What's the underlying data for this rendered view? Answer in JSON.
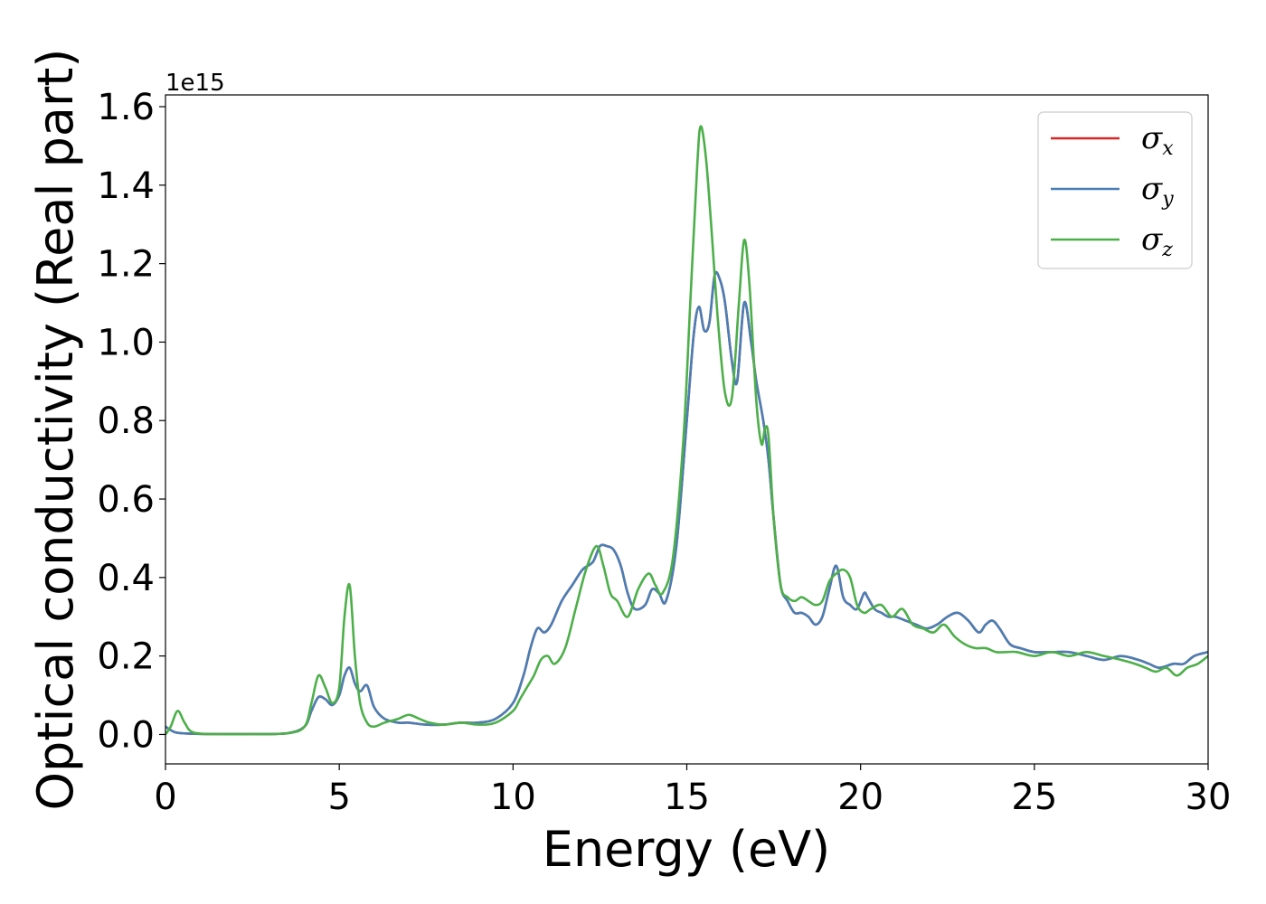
{
  "chart_data": {
    "type": "line",
    "title": "",
    "xlabel": "Energy (eV)",
    "ylabel": "Optical conductivity (Real part)",
    "y_offset_label": "1e15",
    "xlim": [
      0,
      30
    ],
    "ylim": [
      -0.075,
      1.63
    ],
    "xticks": [
      0,
      5,
      10,
      15,
      20,
      25,
      30
    ],
    "yticks": [
      0.0,
      0.2,
      0.4,
      0.6,
      0.8,
      1.0,
      1.2,
      1.4,
      1.6
    ],
    "xtick_labels": [
      "0",
      "5",
      "10",
      "15",
      "20",
      "25",
      "30"
    ],
    "ytick_labels": [
      "0.0",
      "0.2",
      "0.4",
      "0.6",
      "0.8",
      "1.0",
      "1.2",
      "1.4",
      "1.6"
    ],
    "grid": false,
    "legend_position": "top-right",
    "series": [
      {
        "name": "σx",
        "sub": "x",
        "color": "#d62728",
        "x": [
          0,
          0.3,
          0.8,
          1.5,
          2.5,
          3.5,
          4.0,
          4.2,
          4.4,
          4.6,
          4.8,
          5.0,
          5.15,
          5.3,
          5.45,
          5.6,
          5.8,
          6.0,
          6.3,
          6.7,
          7.0,
          7.5,
          8.0,
          8.5,
          9.0,
          9.5,
          10.0,
          10.3,
          10.5,
          10.7,
          10.9,
          11.1,
          11.4,
          11.7,
          12.0,
          12.3,
          12.5,
          12.7,
          12.9,
          13.1,
          13.3,
          13.5,
          13.8,
          14.0,
          14.2,
          14.4,
          14.7,
          15.0,
          15.2,
          15.35,
          15.5,
          15.65,
          15.8,
          15.95,
          16.1,
          16.3,
          16.45,
          16.65,
          16.85,
          17.0,
          17.2,
          17.35,
          17.5,
          17.7,
          17.9,
          18.1,
          18.3,
          18.5,
          18.7,
          18.9,
          19.1,
          19.3,
          19.5,
          19.7,
          19.9,
          20.1,
          20.2,
          20.4,
          20.6,
          20.8,
          21.0,
          21.3,
          21.6,
          21.9,
          22.2,
          22.5,
          22.8,
          23.1,
          23.4,
          23.6,
          23.8,
          24.0,
          24.3,
          24.6,
          25.0,
          25.5,
          26.0,
          26.5,
          27.0,
          27.5,
          28.0,
          28.3,
          28.6,
          29.0,
          29.3,
          29.6,
          30.0
        ],
        "values": [
          0.02,
          0.005,
          0.002,
          0.001,
          0.001,
          0.003,
          0.02,
          0.06,
          0.095,
          0.09,
          0.075,
          0.1,
          0.15,
          0.17,
          0.13,
          0.11,
          0.125,
          0.07,
          0.04,
          0.03,
          0.03,
          0.025,
          0.025,
          0.03,
          0.03,
          0.04,
          0.08,
          0.15,
          0.22,
          0.27,
          0.26,
          0.28,
          0.34,
          0.38,
          0.42,
          0.44,
          0.48,
          0.48,
          0.47,
          0.43,
          0.36,
          0.32,
          0.33,
          0.37,
          0.36,
          0.34,
          0.48,
          0.8,
          1.02,
          1.09,
          1.03,
          1.05,
          1.17,
          1.16,
          1.1,
          0.95,
          0.9,
          1.1,
          1.0,
          0.9,
          0.8,
          0.7,
          0.55,
          0.38,
          0.34,
          0.31,
          0.31,
          0.3,
          0.28,
          0.3,
          0.37,
          0.43,
          0.35,
          0.33,
          0.32,
          0.36,
          0.35,
          0.32,
          0.31,
          0.3,
          0.3,
          0.29,
          0.28,
          0.27,
          0.28,
          0.3,
          0.31,
          0.29,
          0.26,
          0.28,
          0.29,
          0.27,
          0.23,
          0.22,
          0.21,
          0.21,
          0.21,
          0.2,
          0.19,
          0.2,
          0.19,
          0.18,
          0.17,
          0.18,
          0.18,
          0.2,
          0.21
        ]
      },
      {
        "name": "σy",
        "sub": "y",
        "color": "#4a7fb5",
        "x": [
          0,
          0.3,
          0.8,
          1.5,
          2.5,
          3.5,
          4.0,
          4.2,
          4.4,
          4.6,
          4.8,
          5.0,
          5.15,
          5.3,
          5.45,
          5.6,
          5.8,
          6.0,
          6.3,
          6.7,
          7.0,
          7.5,
          8.0,
          8.5,
          9.0,
          9.5,
          10.0,
          10.3,
          10.5,
          10.7,
          10.9,
          11.1,
          11.4,
          11.7,
          12.0,
          12.3,
          12.5,
          12.7,
          12.9,
          13.1,
          13.3,
          13.5,
          13.8,
          14.0,
          14.2,
          14.4,
          14.7,
          15.0,
          15.2,
          15.35,
          15.5,
          15.65,
          15.8,
          15.95,
          16.1,
          16.3,
          16.45,
          16.65,
          16.85,
          17.0,
          17.2,
          17.35,
          17.5,
          17.7,
          17.9,
          18.1,
          18.3,
          18.5,
          18.7,
          18.9,
          19.1,
          19.3,
          19.5,
          19.7,
          19.9,
          20.1,
          20.2,
          20.4,
          20.6,
          20.8,
          21.0,
          21.3,
          21.6,
          21.9,
          22.2,
          22.5,
          22.8,
          23.1,
          23.4,
          23.6,
          23.8,
          24.0,
          24.3,
          24.6,
          25.0,
          25.5,
          26.0,
          26.5,
          27.0,
          27.5,
          28.0,
          28.3,
          28.6,
          29.0,
          29.3,
          29.6,
          30.0
        ],
        "values": [
          0.02,
          0.005,
          0.002,
          0.001,
          0.001,
          0.003,
          0.02,
          0.06,
          0.095,
          0.09,
          0.075,
          0.1,
          0.15,
          0.17,
          0.13,
          0.11,
          0.125,
          0.07,
          0.04,
          0.03,
          0.03,
          0.025,
          0.025,
          0.03,
          0.03,
          0.04,
          0.08,
          0.15,
          0.22,
          0.27,
          0.26,
          0.28,
          0.34,
          0.38,
          0.42,
          0.44,
          0.48,
          0.48,
          0.47,
          0.43,
          0.36,
          0.32,
          0.33,
          0.37,
          0.36,
          0.34,
          0.48,
          0.8,
          1.02,
          1.09,
          1.03,
          1.05,
          1.17,
          1.16,
          1.1,
          0.95,
          0.9,
          1.1,
          1.0,
          0.9,
          0.8,
          0.7,
          0.55,
          0.38,
          0.34,
          0.31,
          0.31,
          0.3,
          0.28,
          0.3,
          0.37,
          0.43,
          0.35,
          0.33,
          0.32,
          0.36,
          0.35,
          0.32,
          0.31,
          0.3,
          0.3,
          0.29,
          0.28,
          0.27,
          0.28,
          0.3,
          0.31,
          0.29,
          0.26,
          0.28,
          0.29,
          0.27,
          0.23,
          0.22,
          0.21,
          0.21,
          0.21,
          0.2,
          0.19,
          0.2,
          0.19,
          0.18,
          0.17,
          0.18,
          0.18,
          0.2,
          0.21
        ]
      },
      {
        "name": "σz",
        "sub": "z",
        "color": "#4daf4a",
        "x": [
          0,
          0.15,
          0.35,
          0.55,
          0.8,
          1.5,
          2.5,
          3.5,
          4.0,
          4.2,
          4.4,
          4.6,
          4.8,
          5.0,
          5.15,
          5.3,
          5.45,
          5.6,
          5.8,
          6.0,
          6.3,
          6.7,
          7.0,
          7.3,
          7.6,
          8.0,
          8.5,
          9.0,
          9.5,
          10.0,
          10.2,
          10.4,
          10.6,
          10.8,
          11.0,
          11.2,
          11.5,
          11.8,
          12.1,
          12.4,
          12.6,
          12.8,
          13.0,
          13.3,
          13.6,
          13.9,
          14.1,
          14.3,
          14.6,
          14.9,
          15.1,
          15.3,
          15.4,
          15.55,
          15.7,
          15.9,
          16.1,
          16.3,
          16.5,
          16.65,
          16.8,
          17.0,
          17.15,
          17.25,
          17.35,
          17.5,
          17.7,
          17.9,
          18.1,
          18.3,
          18.5,
          18.7,
          18.9,
          19.1,
          19.3,
          19.5,
          19.7,
          19.9,
          20.1,
          20.3,
          20.6,
          20.9,
          21.2,
          21.5,
          21.8,
          22.1,
          22.4,
          22.7,
          23.0,
          23.3,
          23.6,
          23.9,
          24.2,
          24.5,
          25.0,
          25.5,
          26.0,
          26.5,
          27.0,
          27.5,
          27.9,
          28.2,
          28.5,
          28.8,
          29.1,
          29.4,
          29.7,
          30.0
        ],
        "values": [
          0.0,
          0.02,
          0.06,
          0.03,
          0.005,
          0.001,
          0.001,
          0.003,
          0.02,
          0.08,
          0.15,
          0.12,
          0.08,
          0.12,
          0.3,
          0.38,
          0.2,
          0.08,
          0.03,
          0.02,
          0.03,
          0.04,
          0.05,
          0.04,
          0.03,
          0.025,
          0.03,
          0.025,
          0.03,
          0.06,
          0.09,
          0.12,
          0.15,
          0.19,
          0.2,
          0.18,
          0.22,
          0.32,
          0.42,
          0.48,
          0.43,
          0.36,
          0.34,
          0.3,
          0.37,
          0.41,
          0.38,
          0.36,
          0.45,
          0.75,
          1.1,
          1.45,
          1.55,
          1.47,
          1.3,
          1.05,
          0.87,
          0.86,
          1.1,
          1.26,
          1.15,
          0.85,
          0.74,
          0.78,
          0.76,
          0.55,
          0.38,
          0.35,
          0.34,
          0.35,
          0.34,
          0.33,
          0.34,
          0.39,
          0.41,
          0.42,
          0.4,
          0.33,
          0.31,
          0.32,
          0.33,
          0.3,
          0.32,
          0.28,
          0.27,
          0.26,
          0.28,
          0.25,
          0.23,
          0.22,
          0.22,
          0.21,
          0.21,
          0.21,
          0.2,
          0.21,
          0.2,
          0.21,
          0.2,
          0.19,
          0.18,
          0.17,
          0.16,
          0.17,
          0.15,
          0.17,
          0.18,
          0.2
        ]
      }
    ]
  }
}
